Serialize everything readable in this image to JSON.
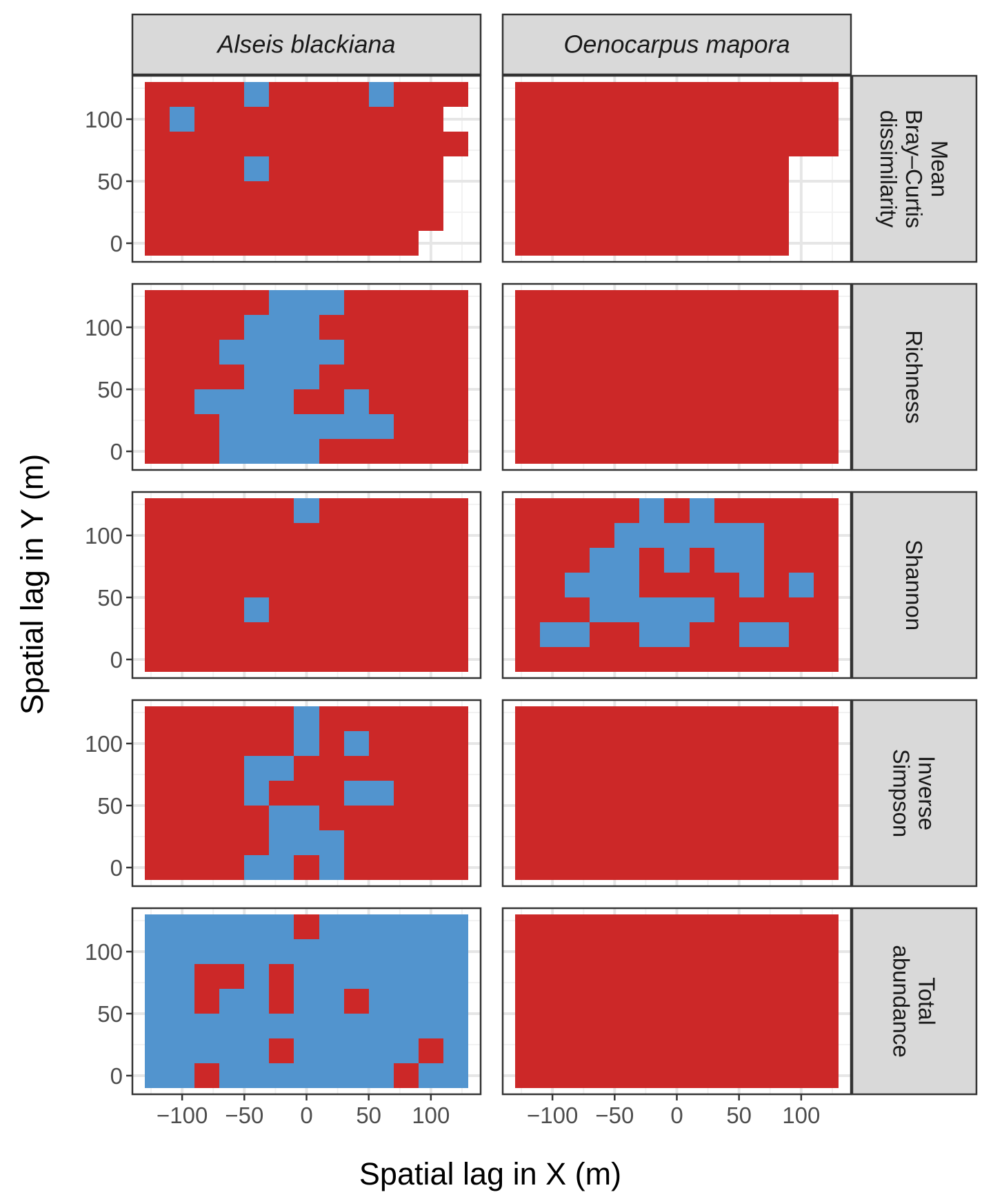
{
  "chart_data": {
    "type": "heatmap",
    "title": "",
    "xlabel": "Spatial lag in X (m)",
    "ylabel": "Spatial lag in Y (m)",
    "xlim": [
      -140,
      140
    ],
    "ylim": [
      -15,
      135
    ],
    "x_ticks": [
      -100,
      -50,
      0,
      50,
      100
    ],
    "x_tick_labels": [
      "−100",
      "−50",
      "0",
      "50",
      "100"
    ],
    "y_ticks": [
      0,
      50,
      100
    ],
    "y_tick_labels": [
      "0",
      "50",
      "100"
    ],
    "cell_size_m": 20,
    "x_centers": [
      -120,
      -100,
      -80,
      -60,
      -40,
      -20,
      0,
      20,
      40,
      60,
      80,
      100,
      120
    ],
    "y_centers": [
      0,
      20,
      40,
      60,
      80,
      100,
      120
    ],
    "legend": [
      {
        "code": "R",
        "color": "#cc2828"
      },
      {
        "code": "B",
        "color": "#5294ce"
      }
    ],
    "columns": [
      "Alseis blackiana",
      "Oenocarpus mapora"
    ],
    "rows": [
      "Mean\nBray–Curtis\ndissimilarity",
      "Richness",
      "Shannon",
      "Inverse\nSimpson",
      "Total\nabundance"
    ],
    "panels": [
      [
        [
          "RRRRRRRRRRR..",
          "RRRRRRRRRRRR.",
          "RRRRRRRRRRRR.",
          "RRRRBRRRRRRR.",
          "RRRRRRRRRRRRR",
          "RBRRRRRRRRRR.",
          "RRRRBRRRRBRRR"
        ],
        [
          "RRRRRRRRRRR..",
          "RRRRRRRRRRR..",
          "RRRRRRRRRRR..",
          "RRRRRRRRRRR..",
          "RRRRRRRRRRRRR",
          "RRRRRRRRRRRRR",
          "RRRRRRRRRRRRR"
        ]
      ],
      [
        [
          "RRRBBBBRRRRRR",
          "RRRBBBBBBBRRR",
          "RRBBBBRRBRRRR",
          "RRRRBBBRRRRRR",
          "RRRBBBBBRRRRR",
          "RRRRBBBRRRRRR",
          "RRRRRBBBRRRRR"
        ],
        [
          "RRRRRRRRRRRRR",
          "RRRRRRRRRRRRR",
          "RRRRRRRRRRRRR",
          "RRRRRRRRRRRRR",
          "RRRRRRRRRRRRR",
          "RRRRRRRRRRRRR",
          "RRRRRRRRRRRRR"
        ]
      ],
      [
        [
          "RRRRRRRRRRRRR",
          "RRRRRRRRRRRRR",
          "RRRRBRRRRRRRR",
          "RRRRRRRRRRRRR",
          "RRRRRRRRRRRRR",
          "RRRRRRRRRRRRR",
          "RRRRRRBRRRRRR"
        ],
        [
          "RRRRRRRRRRRRR",
          "RBBRRBBRRBBRR",
          "RRRBBBBBRRRRR",
          "RRBBBRRRRBRBR",
          "RRRBBRBRBBRRR",
          "RRRRBBBBBBRRR",
          "RRRRRBRBRRRRR"
        ]
      ],
      [
        [
          "RRRRBBRBRRRRR",
          "RRRRRBBBRRRRR",
          "RRRRRBBRRRRRR",
          "RRRRBRRRBBRRR",
          "RRRRBBRRRRRRR",
          "RRRRRRBRBRRRR",
          "RRRRRRBRRRRRR"
        ],
        [
          "RRRRRRRRRRRRR",
          "RRRRRRRRRRRRR",
          "RRRRRRRRRRRRR",
          "RRRRRRRRRRRRR",
          "RRRRRRRRRRRRR",
          "RRRRRRRRRRRRR",
          "RRRRRRRRRRRRR"
        ]
      ],
      [
        [
          "BBRBBBBBBBRBB",
          "BBBBBRBBBBBRB",
          "BBBBBBBBBBBBB",
          "BBRBBRBBRBBBB",
          "BBRRBRBBBBBBB",
          "BBBBBBBBBBBBB",
          "BBBBBBRBBBBBB"
        ],
        [
          "RRRRRRRRRRRRR",
          "RRRRRRRRRRRRR",
          "RRRRRRRRRRRRR",
          "RRRRRRRRRRRRR",
          "RRRRRRRRRRRRR",
          "RRRRRRRRRRRRR",
          "RRRRRRRRRRRRR"
        ]
      ]
    ]
  }
}
